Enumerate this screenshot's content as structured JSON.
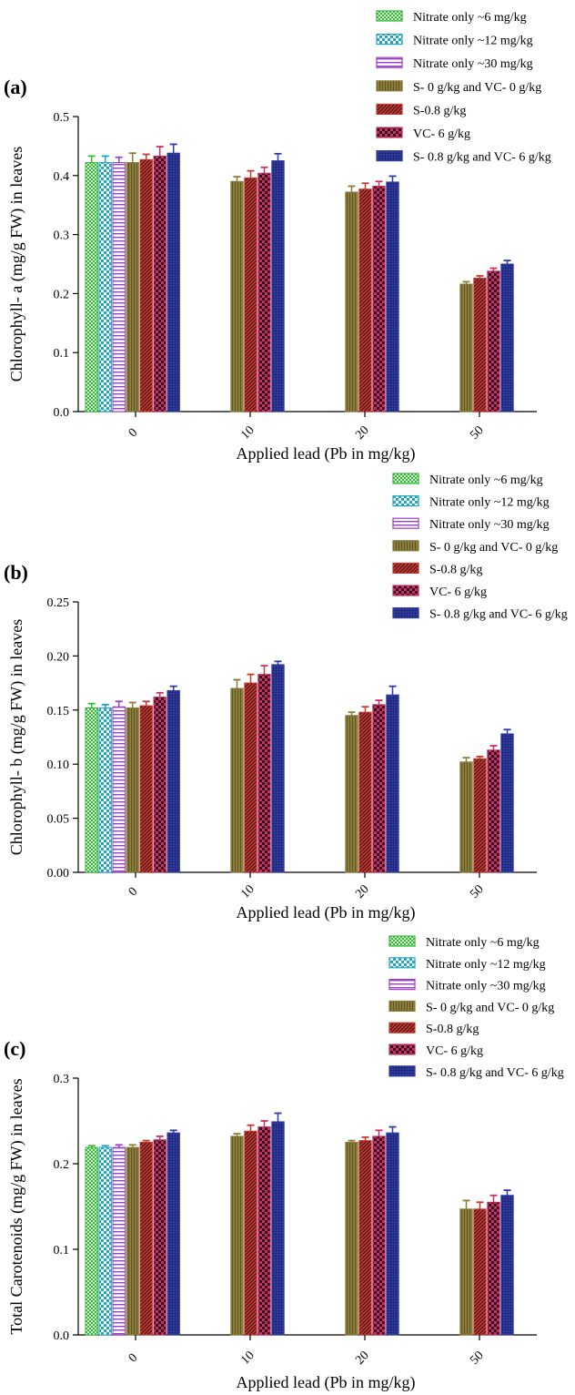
{
  "colors": {
    "nitrate6": "#35b837",
    "nitrate12": "#22a6c5",
    "nitrate30": "#9a3ec7",
    "s0vc0": "#8a7d3a",
    "s08": "#c8382e",
    "vc6": "#cc2f66",
    "s08vc6": "#2f3aa2"
  },
  "legend": [
    "Nitrate only ~6 mg/kg",
    "Nitrate only ~12 mg/kg",
    "Nitrate only ~30 mg/kg",
    "S- 0 g/kg and VC- 0 g/kg",
    "S-0.8 g/kg",
    "VC- 6 g/kg",
    "S- 0.8 g/kg and VC- 6 g/kg"
  ],
  "chart_data": [
    {
      "type": "bar",
      "panel_label": "(a)",
      "xlabel": "Applied lead (Pb in mg/kg)",
      "ylabel": "Chlorophyll- a  (mg/g FW) in leaves",
      "categories": [
        "0",
        "10",
        "20",
        "50"
      ],
      "ylim": [
        0,
        0.5
      ],
      "yticks": [
        "0.0",
        "0.1",
        "0.2",
        "0.3",
        "0.4",
        "0.5"
      ],
      "grid": false,
      "legend_position": "top-right",
      "series": [
        {
          "name": "Nitrate only ~6 mg/kg",
          "values": [
            0.422,
            null,
            null,
            null
          ],
          "errors": [
            0.011,
            null,
            null,
            null
          ]
        },
        {
          "name": "Nitrate only ~12 mg/kg",
          "values": [
            0.422,
            null,
            null,
            null
          ],
          "errors": [
            0.011,
            null,
            null,
            null
          ]
        },
        {
          "name": "Nitrate only ~30 mg/kg",
          "values": [
            0.422,
            null,
            null,
            null
          ],
          "errors": [
            0.009,
            null,
            null,
            null
          ]
        },
        {
          "name": "S- 0 g/kg and VC- 0 g/kg",
          "values": [
            0.422,
            0.39,
            0.372,
            0.216
          ],
          "errors": [
            0.016,
            0.008,
            0.01,
            0.004
          ]
        },
        {
          "name": "S-0.8 g/kg",
          "values": [
            0.427,
            0.396,
            0.377,
            0.226
          ],
          "errors": [
            0.009,
            0.012,
            0.01,
            0.004
          ]
        },
        {
          "name": "VC- 6 g/kg",
          "values": [
            0.433,
            0.404,
            0.382,
            0.238
          ],
          "errors": [
            0.016,
            0.01,
            0.008,
            0.005
          ]
        },
        {
          "name": "S- 0.8 g/kg and VC- 6 g/kg",
          "values": [
            0.438,
            0.425,
            0.389,
            0.25
          ],
          "errors": [
            0.015,
            0.012,
            0.01,
            0.006
          ]
        }
      ]
    },
    {
      "type": "bar",
      "panel_label": "(b)",
      "xlabel": "Applied lead (Pb in mg/kg)",
      "ylabel": "Chlorophyll- b  (mg/g FW) in leaves",
      "categories": [
        "0",
        "10",
        "20",
        "50"
      ],
      "ylim": [
        0,
        0.25
      ],
      "yticks": [
        "0.00",
        "0.05",
        "0.10",
        "0.15",
        "0.20",
        "0.25"
      ],
      "grid": false,
      "legend_position": "top-right",
      "series": [
        {
          "name": "Nitrate only ~6 mg/kg",
          "values": [
            0.152,
            null,
            null,
            null
          ],
          "errors": [
            0.004,
            null,
            null,
            null
          ]
        },
        {
          "name": "Nitrate only ~12 mg/kg",
          "values": [
            0.152,
            null,
            null,
            null
          ],
          "errors": [
            0.003,
            null,
            null,
            null
          ]
        },
        {
          "name": "Nitrate only ~30 mg/kg",
          "values": [
            0.153,
            null,
            null,
            null
          ],
          "errors": [
            0.005,
            null,
            null,
            null
          ]
        },
        {
          "name": "S- 0 g/kg and VC- 0 g/kg",
          "values": [
            0.152,
            0.17,
            0.145,
            0.102
          ],
          "errors": [
            0.005,
            0.008,
            0.003,
            0.004
          ]
        },
        {
          "name": "S-0.8 g/kg",
          "values": [
            0.154,
            0.175,
            0.148,
            0.105
          ],
          "errors": [
            0.004,
            0.008,
            0.005,
            0.002
          ]
        },
        {
          "name": "VC- 6 g/kg",
          "values": [
            0.162,
            0.183,
            0.155,
            0.113
          ],
          "errors": [
            0.004,
            0.008,
            0.004,
            0.004
          ]
        },
        {
          "name": "S- 0.8 g/kg and VC- 6 g/kg",
          "values": [
            0.168,
            0.192,
            0.164,
            0.128
          ],
          "errors": [
            0.004,
            0.003,
            0.008,
            0.004
          ]
        }
      ]
    },
    {
      "type": "bar",
      "panel_label": "(c)",
      "xlabel": "Applied lead (Pb in mg/kg)",
      "ylabel": "Total Carotenoids (mg/g FW) in leaves",
      "categories": [
        "0",
        "10",
        "20",
        "50"
      ],
      "ylim": [
        0,
        0.3
      ],
      "yticks": [
        "0.0",
        "0.1",
        "0.2",
        "0.3"
      ],
      "grid": false,
      "legend_position": "top-right",
      "series": [
        {
          "name": "Nitrate only ~6 mg/kg",
          "values": [
            0.219,
            null,
            null,
            null
          ],
          "errors": [
            0.002,
            null,
            null,
            null
          ]
        },
        {
          "name": "Nitrate only ~12 mg/kg",
          "values": [
            0.219,
            null,
            null,
            null
          ],
          "errors": [
            0.002,
            null,
            null,
            null
          ]
        },
        {
          "name": "Nitrate only ~30 mg/kg",
          "values": [
            0.219,
            null,
            null,
            null
          ],
          "errors": [
            0.003,
            null,
            null,
            null
          ]
        },
        {
          "name": "S- 0 g/kg and VC- 0 g/kg",
          "values": [
            0.219,
            0.232,
            0.225,
            0.147
          ],
          "errors": [
            0.003,
            0.003,
            0.002,
            0.01
          ]
        },
        {
          "name": "S-0.8 g/kg",
          "values": [
            0.225,
            0.238,
            0.227,
            0.147
          ],
          "errors": [
            0.002,
            0.007,
            0.004,
            0.008
          ]
        },
        {
          "name": "VC- 6 g/kg",
          "values": [
            0.228,
            0.243,
            0.232,
            0.155
          ],
          "errors": [
            0.004,
            0.007,
            0.007,
            0.008
          ]
        },
        {
          "name": "S- 0.8 g/kg and VC- 6 g/kg",
          "values": [
            0.236,
            0.249,
            0.236,
            0.163
          ],
          "errors": [
            0.003,
            0.01,
            0.007,
            0.006
          ]
        }
      ]
    }
  ]
}
